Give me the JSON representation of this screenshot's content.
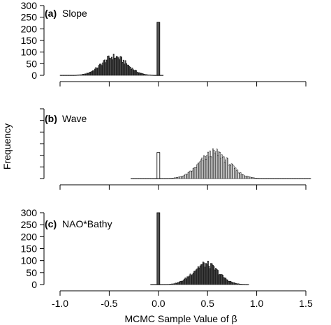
{
  "chart_data": [
    {
      "type": "histogram",
      "panel_tag": "(a)",
      "title": "Slope",
      "fill": "dark",
      "spike": {
        "x": 0.0,
        "count": 228
      },
      "bulk": {
        "center": -0.45,
        "sd": 0.13,
        "peak": 80,
        "from": -1.0,
        "to": 0.05
      },
      "ylim": [
        0,
        300
      ],
      "yticks": [
        0,
        50,
        100,
        150,
        200,
        250,
        300
      ],
      "show_y_tick_labels": true
    },
    {
      "type": "histogram",
      "panel_tag": "(b)",
      "title": "Wave",
      "fill": "light",
      "spike": {
        "x": 0.0,
        "count": 112
      },
      "bulk": {
        "center": 0.57,
        "sd": 0.15,
        "peak": 110,
        "from": -0.28,
        "to": 1.55
      },
      "ylim": [
        0,
        300
      ],
      "yticks": [
        0,
        50,
        100,
        150,
        200,
        250,
        300
      ],
      "show_y_tick_labels": false
    },
    {
      "type": "histogram",
      "panel_tag": "(c)",
      "title": "NAO*Bathy",
      "fill": "dark",
      "spike": {
        "x": 0.0,
        "count": 300
      },
      "bulk": {
        "center": 0.48,
        "sd": 0.13,
        "peak": 85,
        "from": -0.08,
        "to": 0.92
      },
      "ylim": [
        0,
        300
      ],
      "yticks": [
        0,
        50,
        100,
        150,
        200,
        250,
        300
      ],
      "show_y_tick_labels": true
    }
  ],
  "axes": {
    "xlim": [
      -1.0,
      1.5
    ],
    "xticks": [
      -1.0,
      -0.5,
      0.0,
      0.5,
      1.0,
      1.5
    ],
    "xtick_labels": [
      "-1.0",
      "-0.5",
      "0.0",
      "0.5",
      "1.0",
      "1.5"
    ],
    "xlabel": "MCMC Sample Value of β",
    "ylabel": "Frequency"
  },
  "colors": {
    "dark_fill": "#555555",
    "light_fill": "#ffffff",
    "stroke": "#000000"
  }
}
